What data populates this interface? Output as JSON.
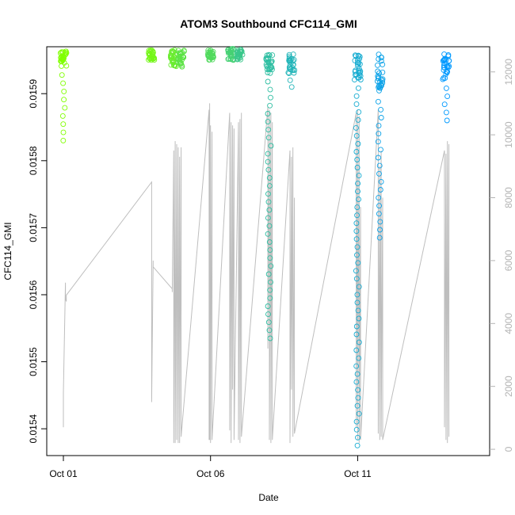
{
  "chart_data": {
    "type": "scatter",
    "title": "ATOM3 Southbound CFC114_GMI",
    "xlabel": "Date",
    "ylabel": "CFC114_GMI",
    "x_ticks": [
      "Oct 01",
      "Oct 06",
      "Oct 11"
    ],
    "x_range_days": [
      0.05,
      14.05
    ],
    "ylim": [
      0.01536,
      0.01597
    ],
    "y_ticks": [
      "0.0154",
      "0.0155",
      "0.0156",
      "0.0157",
      "0.0158",
      "0.0159"
    ],
    "y_tick_values": [
      0.0154,
      0.0155,
      0.0156,
      0.0157,
      0.0158,
      0.0159
    ],
    "y2_lim": [
      -200,
      12800
    ],
    "y2_ticks": [
      "0",
      "2000",
      "4000",
      "6000",
      "8000",
      "10000",
      "12000"
    ],
    "y2_tick_values": [
      0,
      2000,
      4000,
      6000,
      8000,
      10000,
      12000
    ],
    "grid": false,
    "colors": {
      "altitude_line": "#bebebe",
      "right_axis": "#b3b3b3",
      "point_color_start": "#80ff00",
      "point_color_end": "#0099ff"
    },
    "points_series": [
      {
        "x": 0.05,
        "y_top": 0.015965,
        "y_bottom": 0.01583,
        "dense_bottom": 0.01594
      },
      {
        "x": 3.05,
        "y_top": 0.015965,
        "y_bottom": 0.01595,
        "dense_bottom": 0.01595
      },
      {
        "x": 3.8,
        "y_top": 0.015965,
        "y_bottom": 0.015935,
        "dense_bottom": 0.01594
      },
      {
        "x": 4.05,
        "y_top": 0.015965,
        "y_bottom": 0.015945,
        "dense_bottom": 0.01594
      },
      {
        "x": 5.05,
        "y_top": 0.015965,
        "y_bottom": 0.015945,
        "dense_bottom": 0.01595
      },
      {
        "x": 5.75,
        "y_top": 0.015967,
        "y_bottom": 0.015955,
        "dense_bottom": 0.01595
      },
      {
        "x": 6.05,
        "y_top": 0.015967,
        "y_bottom": 0.015955,
        "dense_bottom": 0.01595
      },
      {
        "x": 7.05,
        "y_top": 0.01596,
        "y_bottom": 0.015535,
        "dense_bottom": 0.01593
      },
      {
        "x": 7.8,
        "y_top": 0.01596,
        "y_bottom": 0.01591,
        "dense_bottom": 0.01593
      },
      {
        "x": 10.05,
        "y_top": 0.01596,
        "y_bottom": 0.015375,
        "dense_bottom": 0.01592
      },
      {
        "x": 10.8,
        "y_top": 0.01596,
        "y_bottom": 0.015685,
        "dense_bottom": 0.0159
      },
      {
        "x": 13.05,
        "y_top": 0.01596,
        "y_bottom": 0.01586,
        "dense_bottom": 0.01592
      }
    ],
    "altitude_path": [
      [
        0.05,
        700
      ],
      [
        0.05,
        1800
      ],
      [
        0.12,
        5300
      ],
      [
        0.12,
        4800
      ],
      [
        0.15,
        4700
      ],
      [
        0.15,
        4900
      ],
      [
        3.05,
        8500
      ],
      [
        3.05,
        1500
      ],
      [
        3.1,
        6000
      ],
      [
        3.1,
        5800
      ],
      [
        3.75,
        5100
      ],
      [
        3.75,
        5000
      ],
      [
        3.8,
        9500
      ],
      [
        3.8,
        200
      ],
      [
        3.85,
        9800
      ],
      [
        3.85,
        200
      ],
      [
        3.9,
        9700
      ],
      [
        3.9,
        300
      ],
      [
        3.95,
        9600
      ],
      [
        3.95,
        200
      ],
      [
        4.0,
        9300
      ],
      [
        4.0,
        200
      ],
      [
        4.05,
        9600
      ],
      [
        4.05,
        400
      ],
      [
        5.0,
        10800
      ],
      [
        5.0,
        300
      ],
      [
        5.02,
        11000
      ],
      [
        5.02,
        300
      ],
      [
        5.05,
        10300
      ],
      [
        5.05,
        200
      ],
      [
        5.1,
        10100
      ],
      [
        5.1,
        300
      ],
      [
        5.7,
        10700
      ],
      [
        5.7,
        600
      ],
      [
        5.75,
        10400
      ],
      [
        5.75,
        200
      ],
      [
        5.8,
        10300
      ],
      [
        5.8,
        1900
      ],
      [
        5.85,
        10200
      ],
      [
        5.85,
        300
      ],
      [
        6.0,
        10400
      ],
      [
        6.0,
        300
      ],
      [
        6.05,
        10500
      ],
      [
        6.05,
        200
      ],
      [
        6.1,
        10700
      ],
      [
        6.1,
        400
      ],
      [
        7.0,
        10900
      ],
      [
        7.0,
        3200
      ],
      [
        7.05,
        10800
      ],
      [
        7.05,
        300
      ],
      [
        7.1,
        10700
      ],
      [
        7.1,
        200
      ],
      [
        7.15,
        10400
      ],
      [
        7.15,
        300
      ],
      [
        7.75,
        9500
      ],
      [
        7.75,
        200
      ],
      [
        7.8,
        9300
      ],
      [
        7.8,
        1900
      ],
      [
        7.85,
        9600
      ],
      [
        7.85,
        400
      ],
      [
        7.9,
        8000
      ],
      [
        7.9,
        500
      ],
      [
        10.0,
        10700
      ],
      [
        10.0,
        700
      ],
      [
        10.05,
        10800
      ],
      [
        10.05,
        300
      ],
      [
        10.1,
        10600
      ],
      [
        10.1,
        200
      ],
      [
        10.15,
        7700
      ],
      [
        10.15,
        300
      ],
      [
        10.75,
        10800
      ],
      [
        10.75,
        500
      ],
      [
        10.8,
        9000
      ],
      [
        10.8,
        300
      ],
      [
        10.85,
        9500
      ],
      [
        10.85,
        400
      ],
      [
        10.9,
        8000
      ],
      [
        10.9,
        300
      ],
      [
        13.0,
        9500
      ],
      [
        13.0,
        700
      ],
      [
        13.05,
        9400
      ],
      [
        13.05,
        300
      ],
      [
        13.1,
        9800
      ],
      [
        13.1,
        200
      ],
      [
        13.15,
        9700
      ],
      [
        13.15,
        400
      ]
    ]
  }
}
